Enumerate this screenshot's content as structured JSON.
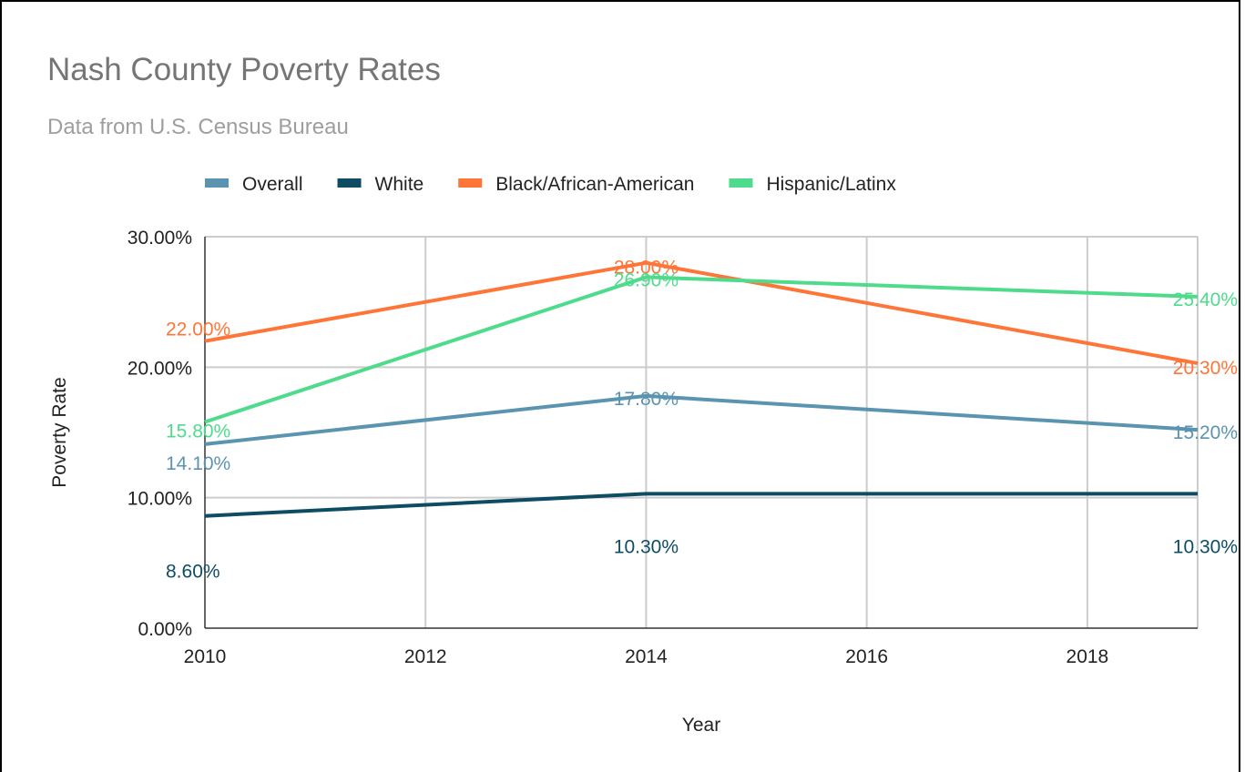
{
  "chart_data": {
    "type": "line",
    "title": "Nash County Poverty Rates",
    "subtitle": "Data from U.S. Census Bureau",
    "xlabel": "Year",
    "ylabel": "Poverty Rate",
    "xlim": [
      2010,
      2019
    ],
    "ylim": [
      0,
      30
    ],
    "x_ticks": [
      "2010",
      "2012",
      "2014",
      "2016",
      "2018"
    ],
    "y_ticks": [
      "0.00%",
      "10.00%",
      "20.00%",
      "30.00%"
    ],
    "grid": true,
    "legend_position": "top",
    "series": [
      {
        "name": "Overall",
        "color": "#5b94b0",
        "points": [
          {
            "x": 2010,
            "y": 14.1,
            "label": "14.10%"
          },
          {
            "x": 2014,
            "y": 17.8,
            "label": "17.80%"
          },
          {
            "x": 2019,
            "y": 15.2,
            "label": "15.20%"
          }
        ]
      },
      {
        "name": "White",
        "color": "#0e4c63",
        "points": [
          {
            "x": 2010,
            "y": 8.6,
            "label": "8.60%"
          },
          {
            "x": 2014,
            "y": 10.3,
            "label": "10.30%"
          },
          {
            "x": 2019,
            "y": 10.3,
            "label": "10.30%"
          }
        ]
      },
      {
        "name": "Black/African-American",
        "color": "#ff7538",
        "points": [
          {
            "x": 2010,
            "y": 22.0,
            "label": "22.00%"
          },
          {
            "x": 2014,
            "y": 28.0,
            "label": "28.00%"
          },
          {
            "x": 2019,
            "y": 20.3,
            "label": "20.30%"
          }
        ]
      },
      {
        "name": "Hispanic/Latinx",
        "color": "#4fdb8c",
        "points": [
          {
            "x": 2010,
            "y": 15.8,
            "label": "15.80%"
          },
          {
            "x": 2014,
            "y": 26.9,
            "label": "26.90%"
          },
          {
            "x": 2019,
            "y": 25.4,
            "label": "25.40%"
          }
        ]
      }
    ]
  }
}
